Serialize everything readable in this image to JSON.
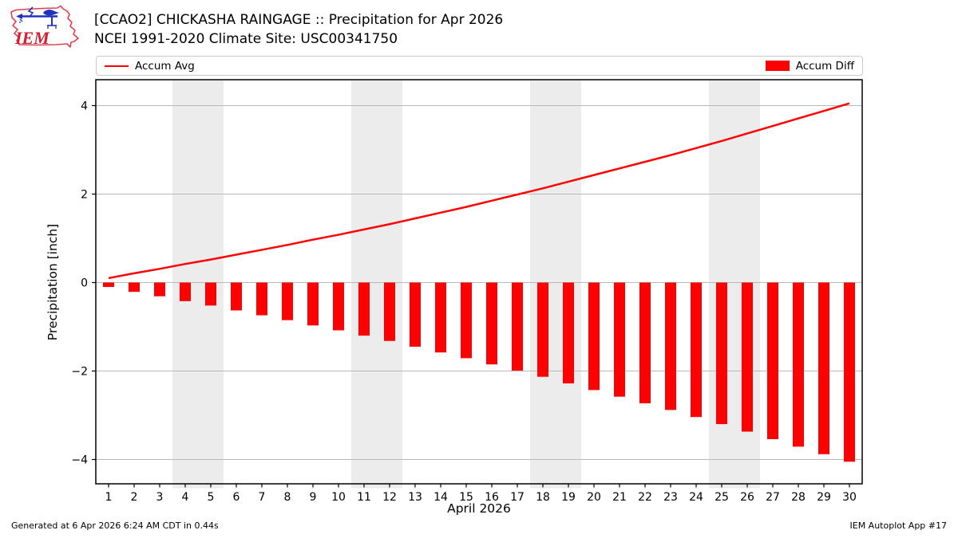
{
  "header": {
    "logo_text": "IEM",
    "title_line1": "[CCAO2] CHICKASHA RAINGAGE :: Precipitation for Apr 2026",
    "title_line2": "NCEI 1991-2020 Climate Site: USC00341750"
  },
  "legend": {
    "accum_avg_label": "Accum Avg",
    "accum_diff_label": "Accum Diff"
  },
  "chart_data": {
    "type": "bar",
    "xlabel": "April 2026",
    "ylabel": "Precipitation [inch]",
    "x": [
      1,
      2,
      3,
      4,
      5,
      6,
      7,
      8,
      9,
      10,
      11,
      12,
      13,
      14,
      15,
      16,
      17,
      18,
      19,
      20,
      21,
      22,
      23,
      24,
      25,
      26,
      27,
      28,
      29,
      30
    ],
    "yticks": [
      -4,
      -2,
      0,
      2,
      4
    ],
    "ylim": [
      -4.6,
      4.6
    ],
    "grid": true,
    "series": [
      {
        "name": "Accum Avg",
        "type": "line",
        "color": "#ff0000",
        "values": [
          0.1,
          0.21,
          0.31,
          0.42,
          0.52,
          0.63,
          0.74,
          0.85,
          0.97,
          1.08,
          1.2,
          1.32,
          1.45,
          1.58,
          1.71,
          1.85,
          1.99,
          2.13,
          2.28,
          2.43,
          2.58,
          2.73,
          2.88,
          3.04,
          3.2,
          3.37,
          3.54,
          3.71,
          3.88,
          4.05
        ]
      },
      {
        "name": "Accum Diff",
        "type": "bar",
        "color": "#ff0000",
        "values": [
          -0.1,
          -0.21,
          -0.31,
          -0.42,
          -0.52,
          -0.63,
          -0.74,
          -0.85,
          -0.97,
          -1.08,
          -1.2,
          -1.32,
          -1.45,
          -1.58,
          -1.71,
          -1.85,
          -1.99,
          -2.13,
          -2.28,
          -2.43,
          -2.58,
          -2.73,
          -2.88,
          -3.04,
          -3.2,
          -3.37,
          -3.54,
          -3.71,
          -3.88,
          -4.05
        ]
      }
    ],
    "weekend_bands": [
      [
        4,
        5
      ],
      [
        11,
        12
      ],
      [
        18,
        19
      ],
      [
        25,
        26
      ]
    ],
    "band_color": "#ececec",
    "gridline_color": "#b8b8b8",
    "legend_position": "top"
  },
  "footer": {
    "generated": "Generated at 6 Apr 2026 6:24 AM CDT in 0.44s",
    "app": "IEM Autoplot App #17"
  },
  "colors": {
    "accent_red": "#ff0000",
    "logo_outline": "#e04050",
    "logo_vane": "#2233bb",
    "logo_text": "#cc2233"
  }
}
